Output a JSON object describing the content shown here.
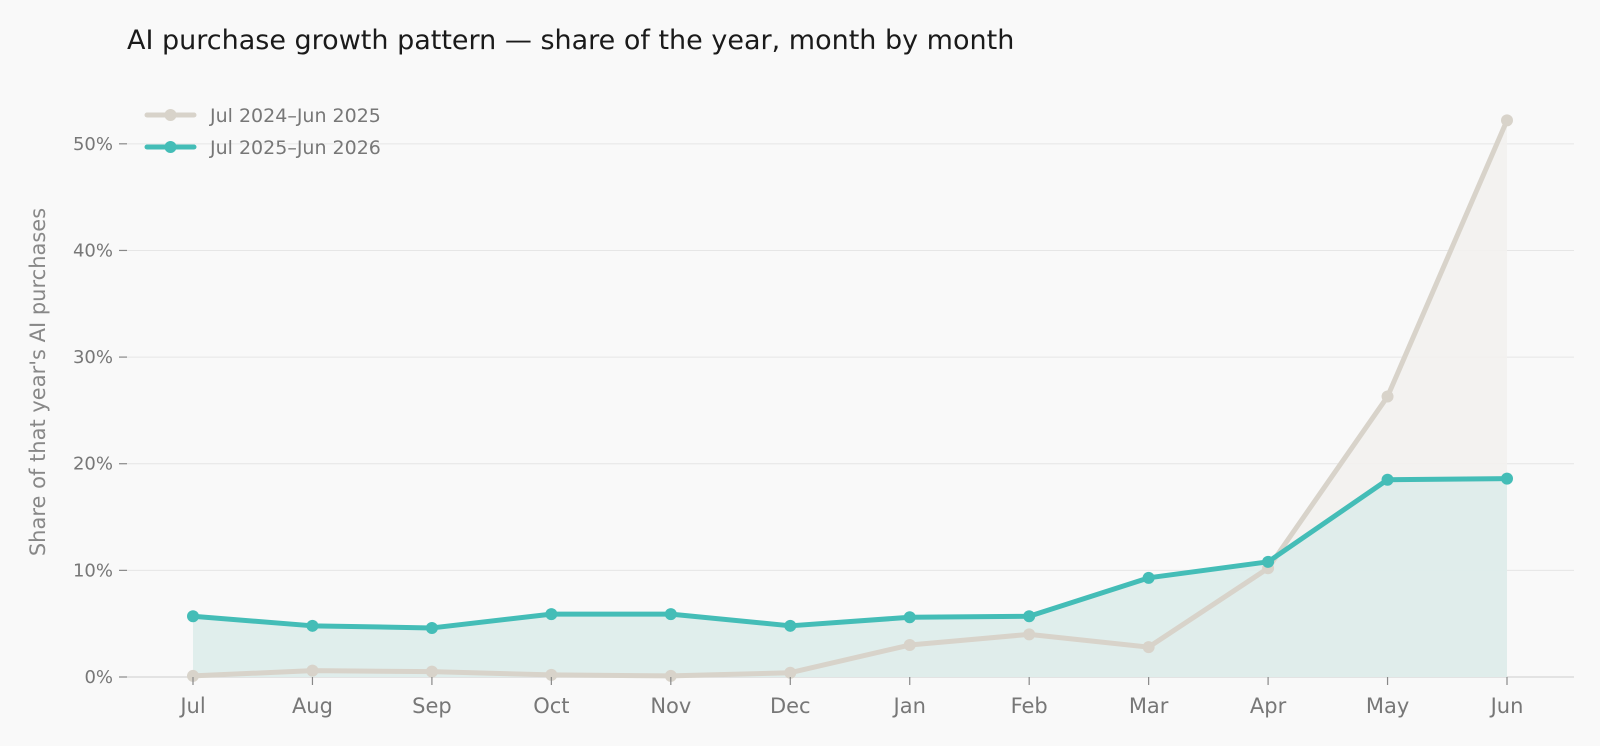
{
  "chart_data": {
    "type": "line",
    "title": "AI purchase growth pattern — share of the year, month by month",
    "ylabel": "Share of that year's AI purchases",
    "xlabel": "",
    "categories": [
      "Jul",
      "Aug",
      "Sep",
      "Oct",
      "Nov",
      "Dec",
      "Jan",
      "Feb",
      "Mar",
      "Apr",
      "May",
      "Jun"
    ],
    "ylim": [
      0,
      55
    ],
    "yticks": [
      0,
      10,
      20,
      30,
      40,
      50
    ],
    "ytick_labels": [
      "0%",
      "10%",
      "20%",
      "30%",
      "40%",
      "50%"
    ],
    "grid": "horizontal",
    "legend_position": "top-left",
    "series": [
      {
        "name": "Jul 2024–Jun 2025",
        "color": "#d8d3ca",
        "fill": "#f2f1ee",
        "values": [
          0.1,
          0.6,
          0.5,
          0.2,
          0.1,
          0.4,
          3.0,
          4.0,
          2.8,
          10.2,
          26.3,
          52.2
        ]
      },
      {
        "name": "Jul 2025–Jun 2026",
        "color": "#44bdb7",
        "fill": "#dcecea",
        "values": [
          5.7,
          4.8,
          4.6,
          5.9,
          5.9,
          4.8,
          5.6,
          5.7,
          9.3,
          10.8,
          18.5,
          18.6
        ]
      }
    ]
  }
}
